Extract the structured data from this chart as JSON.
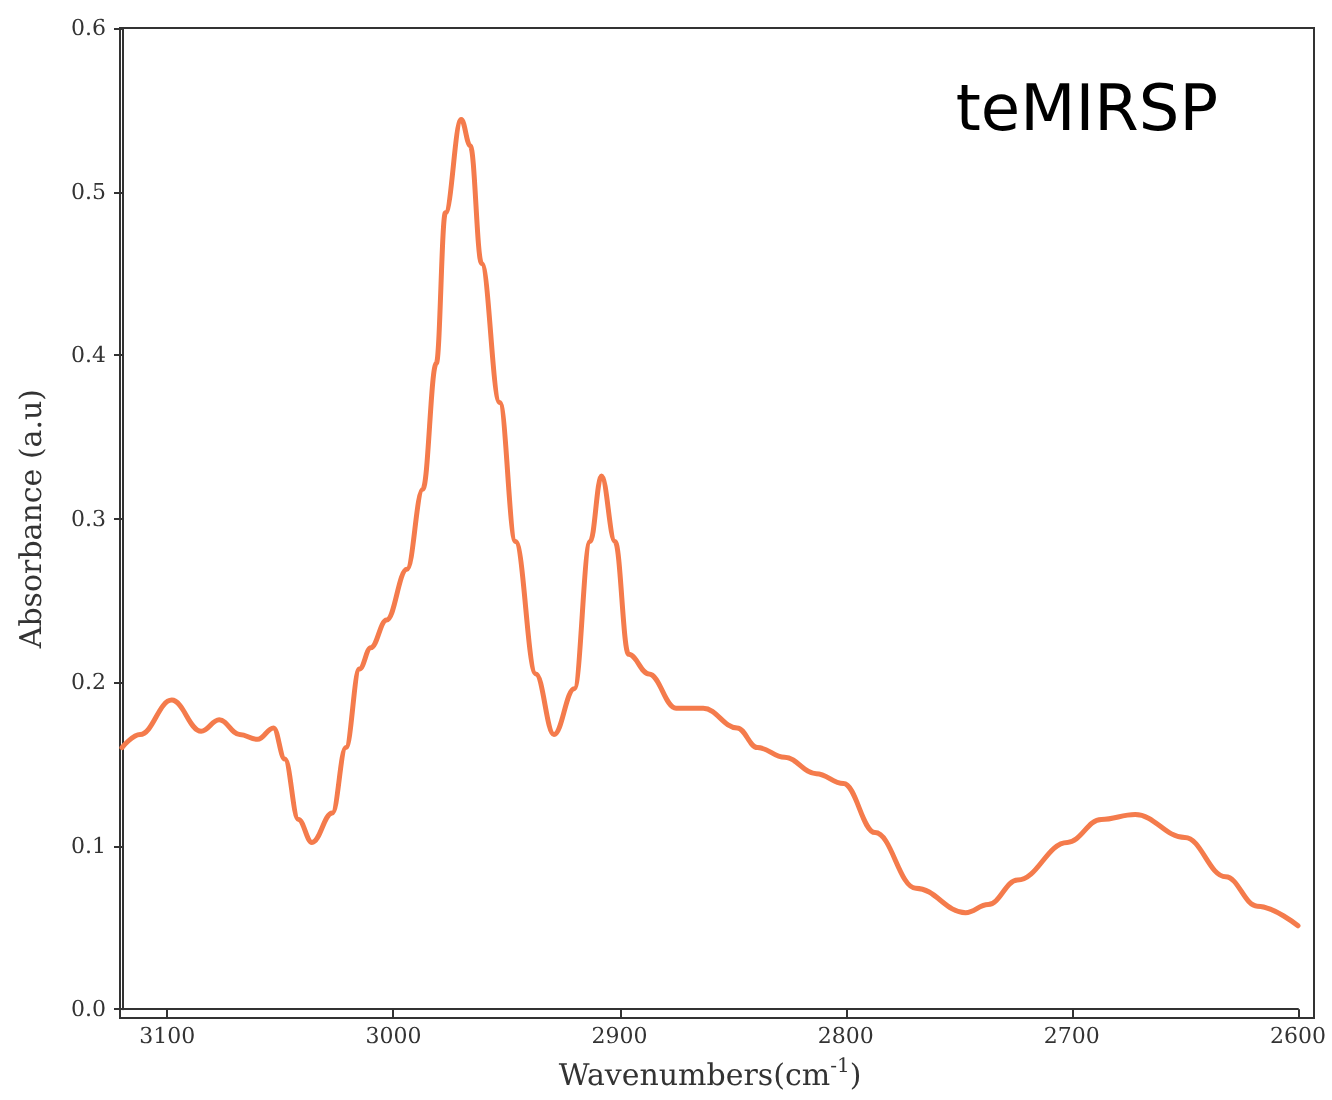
{
  "chart_data": {
    "type": "line",
    "xlabel": "Wavenumbers(cm$^{-1}$)",
    "ylabel": "Absorbance (a.u)",
    "annotations": [
      "teMIRSP"
    ],
    "x": [
      3120,
      3112,
      3098,
      3085,
      3077,
      3068,
      3060,
      3053,
      3048,
      3042,
      3036,
      3027,
      3021,
      3015,
      3010,
      3003,
      2994,
      2987,
      2981,
      2977,
      2970,
      2966,
      2961,
      2953,
      2946,
      2937,
      2929,
      2920,
      2913,
      2908,
      2902,
      2896,
      2887,
      2875,
      2863,
      2848,
      2839,
      2827,
      2813,
      2801,
      2787,
      2769,
      2747,
      2737,
      2724,
      2702,
      2687,
      2672,
      2650,
      2632,
      2618,
      2600
    ],
    "series": [
      {
        "color": "#f47b4c",
        "values": [
          0.16,
          0.168,
          0.189,
          0.17,
          0.177,
          0.168,
          0.165,
          0.172,
          0.153,
          0.116,
          0.102,
          0.12,
          0.16,
          0.208,
          0.221,
          0.238,
          0.269,
          0.318,
          0.395,
          0.487,
          0.544,
          0.528,
          0.456,
          0.371,
          0.286,
          0.205,
          0.168,
          0.196,
          0.286,
          0.326,
          0.286,
          0.217,
          0.205,
          0.184,
          0.184,
          0.172,
          0.16,
          0.154,
          0.144,
          0.138,
          0.108,
          0.074,
          0.059,
          0.064,
          0.079,
          0.102,
          0.116,
          0.119,
          0.105,
          0.081,
          0.063,
          0.051
        ]
      }
    ],
    "xlim": [
      3120,
      2600
    ],
    "xticks": [
      3100,
      3000,
      2900,
      2800,
      2700,
      2600
    ],
    "ylim": [
      0,
      0.6
    ],
    "yticks": [
      {
        "value": 0,
        "label": "0.0"
      },
      0.1,
      0.2,
      0.3,
      0.4,
      0.5,
      0.6
    ],
    "grid": false,
    "marker": "none",
    "line_style": "solid"
  }
}
